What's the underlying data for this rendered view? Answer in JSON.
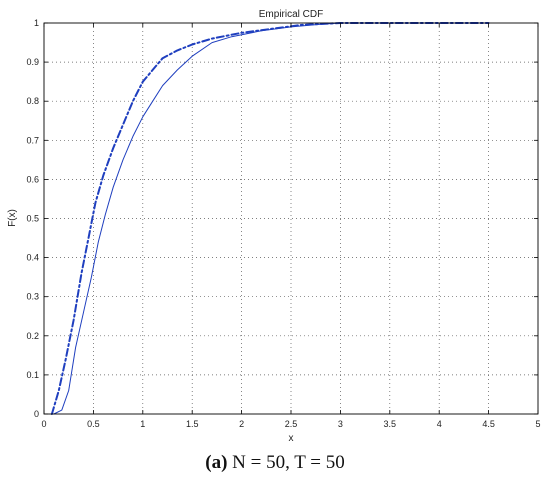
{
  "caption": {
    "tag": "(a)",
    "text": "N = 50, T = 50"
  },
  "chart_data": {
    "type": "line",
    "title": "Empirical CDF",
    "xlabel": "x",
    "ylabel": "F(x)",
    "xlim": [
      0,
      5
    ],
    "ylim": [
      0,
      1
    ],
    "xticks": [
      0,
      0.5,
      1,
      1.5,
      2,
      2.5,
      3,
      3.5,
      4,
      4.5,
      5
    ],
    "xtick_labels": [
      "0",
      "0.5",
      "1",
      "1.5",
      "2",
      "2.5",
      "3",
      "3.5",
      "4",
      "4.5",
      "5"
    ],
    "yticks": [
      0,
      0.1,
      0.2,
      0.3,
      0.4,
      0.5,
      0.6,
      0.7,
      0.8,
      0.9,
      1
    ],
    "ytick_labels": [
      "0",
      "0.1",
      "0.2",
      "0.3",
      "0.4",
      "0.5",
      "0.6",
      "0.7",
      "0.8",
      "0.9",
      "1"
    ],
    "grid": true,
    "series_color": "#1f3fbf",
    "series": [
      {
        "style": "dashdot",
        "x": [
          0.08,
          0.15,
          0.22,
          0.3,
          0.38,
          0.45,
          0.52,
          0.6,
          0.7,
          0.8,
          0.9,
          1.0,
          1.1,
          1.2,
          1.35,
          1.5,
          1.7,
          2.0,
          2.3,
          2.6,
          3.0,
          3.5,
          4.0,
          4.5
        ],
        "y": [
          0.0,
          0.06,
          0.14,
          0.24,
          0.36,
          0.45,
          0.54,
          0.61,
          0.68,
          0.74,
          0.8,
          0.85,
          0.88,
          0.91,
          0.93,
          0.945,
          0.96,
          0.975,
          0.985,
          0.995,
          1.0,
          1.0,
          1.0,
          1.0
        ]
      },
      {
        "style": "solid",
        "x": [
          0.1,
          0.18,
          0.25,
          0.32,
          0.4,
          0.48,
          0.55,
          0.62,
          0.7,
          0.8,
          0.9,
          1.0,
          1.1,
          1.2,
          1.35,
          1.5,
          1.7,
          1.9,
          2.2,
          2.5,
          2.8,
          3.0,
          3.5,
          4.0,
          4.5
        ],
        "y": [
          0.0,
          0.01,
          0.06,
          0.17,
          0.26,
          0.35,
          0.44,
          0.51,
          0.58,
          0.65,
          0.71,
          0.76,
          0.8,
          0.84,
          0.88,
          0.915,
          0.95,
          0.965,
          0.98,
          0.99,
          0.997,
          1.0,
          1.0,
          1.0,
          1.0
        ]
      }
    ]
  }
}
